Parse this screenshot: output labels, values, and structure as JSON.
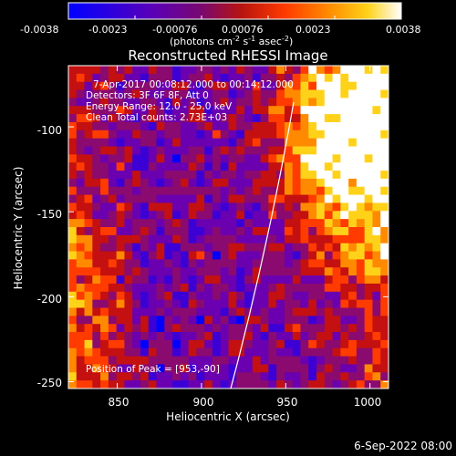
{
  "colorbar": {
    "ticks": [
      "-0.0038",
      "-0.0023",
      "-0.00076",
      "0.00076",
      "0.0023",
      "0.0038"
    ],
    "units_main": "(photons cm",
    "units_exp1": "-2",
    "units_mid": " s",
    "units_exp2": "-1",
    "units_end": " asec",
    "units_exp3": "-2",
    "units_close": ")",
    "range": [
      -0.0038,
      0.0038
    ],
    "colormap": [
      "#0000ff",
      "#3b00d6",
      "#6a00b0",
      "#8a0a70",
      "#c41010",
      "#ff3b00",
      "#ff8a00",
      "#ffd21a",
      "#ffffff"
    ]
  },
  "plot": {
    "title": "Reconstructed RHESSI Image",
    "info_lines": [
      "7-Apr-2017 00:08:12.000 to 00:14:12.000",
      "Detectors: 3F 6F 8F, Att 0",
      "Energy Range: 12.0 - 25.0 keV",
      "Clean     Total counts: 2.73E+03"
    ],
    "peak_text": "Position of Peak = [953,-90]",
    "xlabel": "Heliocentric X (arcsec)",
    "ylabel": "Heliocentric Y (arcsec)",
    "xticks": [
      "850",
      "900",
      "950",
      "1000"
    ],
    "yticks": [
      "-100",
      "-150",
      "-200",
      "-250"
    ],
    "x_range": [
      821,
      1011
    ],
    "y_range": [
      -254,
      -64
    ],
    "x_tick_values": [
      850,
      900,
      950,
      1000
    ],
    "y_tick_values": [
      -100,
      -150,
      -200,
      -250
    ],
    "limb_color": "#ffffff"
  },
  "footer": {
    "timestamp": "6-Sep-2022 08:00"
  }
}
